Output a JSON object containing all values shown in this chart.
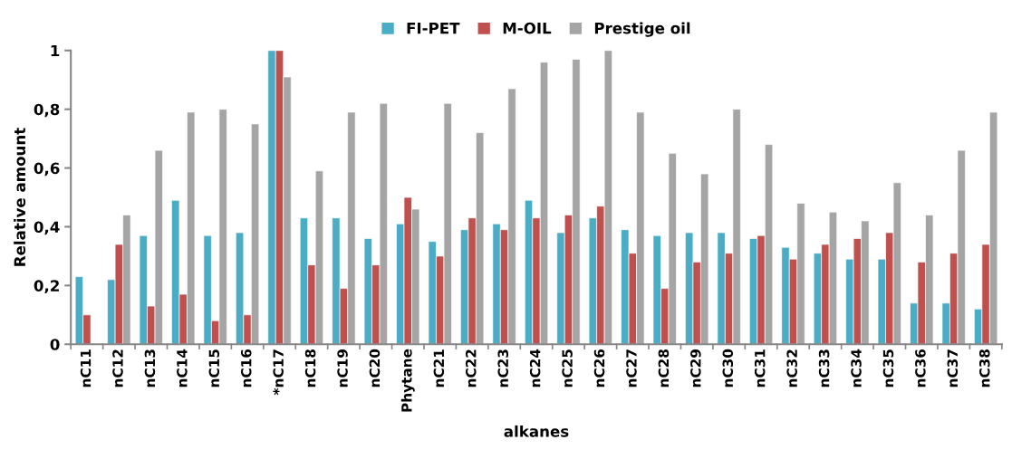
{
  "chart_data": {
    "type": "bar",
    "xlabel": "alkanes",
    "ylabel": "Relative amount",
    "categories": [
      "nC11",
      "nC12",
      "nC13",
      "nC14",
      "nC15",
      "nC16",
      "*nC17",
      "nC18",
      "nC19",
      "nC20",
      "Phytane",
      "nC21",
      "nC22",
      "nC23",
      "nC24",
      "nC25",
      "nC26",
      "nC27",
      "nC28",
      "nC29",
      "nC30",
      "nC31",
      "nC32",
      "nC33",
      "nC34",
      "nC35",
      "nC36",
      "nC37",
      "nC38"
    ],
    "series": [
      {
        "name": "FI-PET",
        "color": "#4bacc6",
        "values": [
          0.23,
          0.22,
          0.37,
          0.49,
          0.37,
          0.38,
          1,
          0.43,
          0.43,
          0.36,
          0.41,
          0.35,
          0.39,
          0.41,
          0.49,
          0.38,
          0.43,
          0.39,
          0.37,
          0.38,
          0.38,
          0.36,
          0.33,
          0.31,
          0.29,
          0.29,
          0.14,
          0.14,
          0.12
        ]
      },
      {
        "name": "M-OIL",
        "color": "#c0504d",
        "values": [
          0.1,
          0.34,
          0.13,
          0.17,
          0.08,
          0.1,
          1,
          0.27,
          0.19,
          0.27,
          0.5,
          0.3,
          0.43,
          0.39,
          0.43,
          0.44,
          0.47,
          0.31,
          0.19,
          0.28,
          0.31,
          0.37,
          0.29,
          0.34,
          0.36,
          0.38,
          0.28,
          0.31,
          0.34
        ]
      },
      {
        "name": "Prestige oil",
        "color": "#a5a5a5",
        "values": [
          null,
          0.44,
          0.66,
          0.79,
          0.8,
          0.75,
          0.91,
          0.59,
          0.79,
          0.82,
          0.46,
          0.82,
          0.72,
          0.87,
          0.96,
          0.97,
          1.0,
          0.79,
          0.65,
          0.58,
          0.8,
          0.68,
          0.48,
          0.45,
          0.42,
          0.55,
          0.44,
          0.66,
          0.79
        ]
      }
    ],
    "ylim": [
      0,
      1
    ],
    "yticks": [
      {
        "value": 0,
        "label": "0"
      },
      {
        "value": 0.2,
        "label": "0,2"
      },
      {
        "value": 0.4,
        "label": "0,4"
      },
      {
        "value": 0.6,
        "label": "0,6"
      },
      {
        "value": 0.8,
        "label": "0,8"
      },
      {
        "value": 1,
        "label": "1"
      }
    ],
    "grid": false,
    "legend": "top"
  }
}
